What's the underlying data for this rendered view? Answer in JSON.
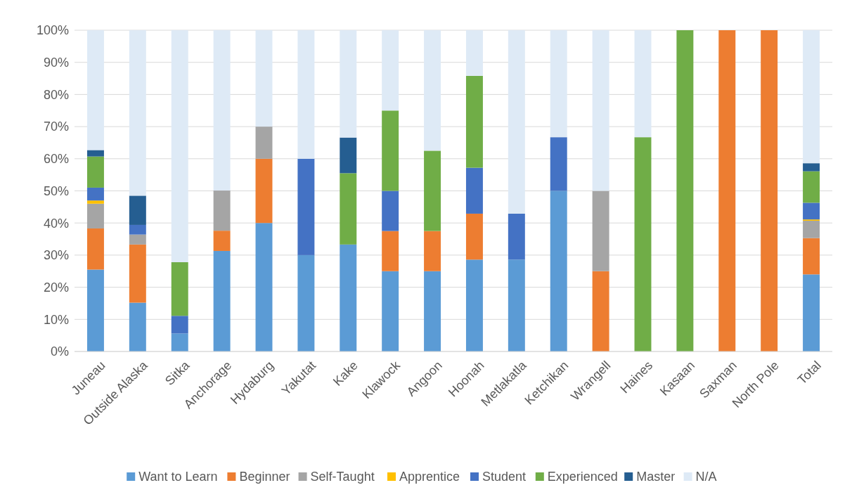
{
  "chart_data": {
    "type": "bar",
    "stacked": true,
    "categories": [
      "Juneau",
      "Outside Alaska",
      "Sitka",
      "Anchorage",
      "Hydaburg",
      "Yakutat",
      "Kake",
      "Klawock",
      "Angoon",
      "Hoonah",
      "Metlakatla",
      "Ketchikan",
      "Wrangell",
      "Haines",
      "Kasaan",
      "Saxman",
      "North Pole",
      "Total"
    ],
    "series": [
      {
        "name": "Want to Learn",
        "color": "#5b9bd5",
        "values": [
          25.5,
          15.2,
          5.6,
          31.3,
          40,
          30,
          33.3,
          25,
          25,
          28.6,
          28.6,
          50,
          0,
          0,
          0,
          0,
          0,
          24
        ]
      },
      {
        "name": "Beginner",
        "color": "#ed7d31",
        "values": [
          12.8,
          18.1,
          0,
          6.3,
          20,
          0,
          0,
          12.5,
          12.5,
          14.3,
          0,
          0,
          25,
          0,
          0,
          100,
          100,
          11.3
        ]
      },
      {
        "name": "Self-Taught",
        "color": "#a5a5a5",
        "values": [
          7.7,
          3.1,
          0,
          12.5,
          10,
          0,
          0,
          0,
          0,
          0,
          0,
          0,
          25,
          0,
          0,
          0,
          0,
          5.4
        ]
      },
      {
        "name": "Apprentice",
        "color": "#ffc000",
        "values": [
          1,
          0,
          0,
          0,
          0,
          0,
          0,
          0,
          0,
          0,
          0,
          0,
          0,
          0,
          0,
          0,
          0,
          0.4
        ]
      },
      {
        "name": "Student",
        "color": "#4472c4",
        "values": [
          4,
          3,
          5.5,
          0,
          0,
          30,
          0,
          12.5,
          0,
          14.3,
          14.3,
          16.7,
          0,
          0,
          0,
          0,
          0,
          5.2
        ]
      },
      {
        "name": "Experienced",
        "color": "#70ad47",
        "values": [
          9.7,
          0,
          16.7,
          0,
          0,
          0,
          22.2,
          25,
          25,
          28.6,
          0,
          0,
          0,
          66.7,
          100,
          0,
          0,
          9.8
        ]
      },
      {
        "name": "Master",
        "color": "#255e91",
        "values": [
          2,
          9.1,
          0,
          0,
          0,
          0,
          11.1,
          0,
          0,
          0,
          0,
          0,
          0,
          0,
          0,
          0,
          0,
          2.5
        ]
      },
      {
        "name": "N/A",
        "color": "#deeaf6",
        "values": [
          37.3,
          51.5,
          72.2,
          49.9,
          30,
          40,
          33.4,
          25,
          37.5,
          14.2,
          57.1,
          33.3,
          50,
          33.3,
          0,
          0,
          0,
          41.4
        ]
      }
    ],
    "ylim": [
      0,
      100
    ],
    "yticks": [
      {
        "value": 0,
        "label": "0%"
      },
      {
        "value": 10,
        "label": "10%"
      },
      {
        "value": 20,
        "label": "20%"
      },
      {
        "value": 30,
        "label": "30%"
      },
      {
        "value": 40,
        "label": "40%"
      },
      {
        "value": 50,
        "label": "50%"
      },
      {
        "value": 60,
        "label": "60%"
      },
      {
        "value": 70,
        "label": "70%"
      },
      {
        "value": 80,
        "label": "80%"
      },
      {
        "value": 90,
        "label": "90%"
      },
      {
        "value": 100,
        "label": "100%"
      }
    ],
    "grid": "y",
    "legend": "bottom"
  }
}
